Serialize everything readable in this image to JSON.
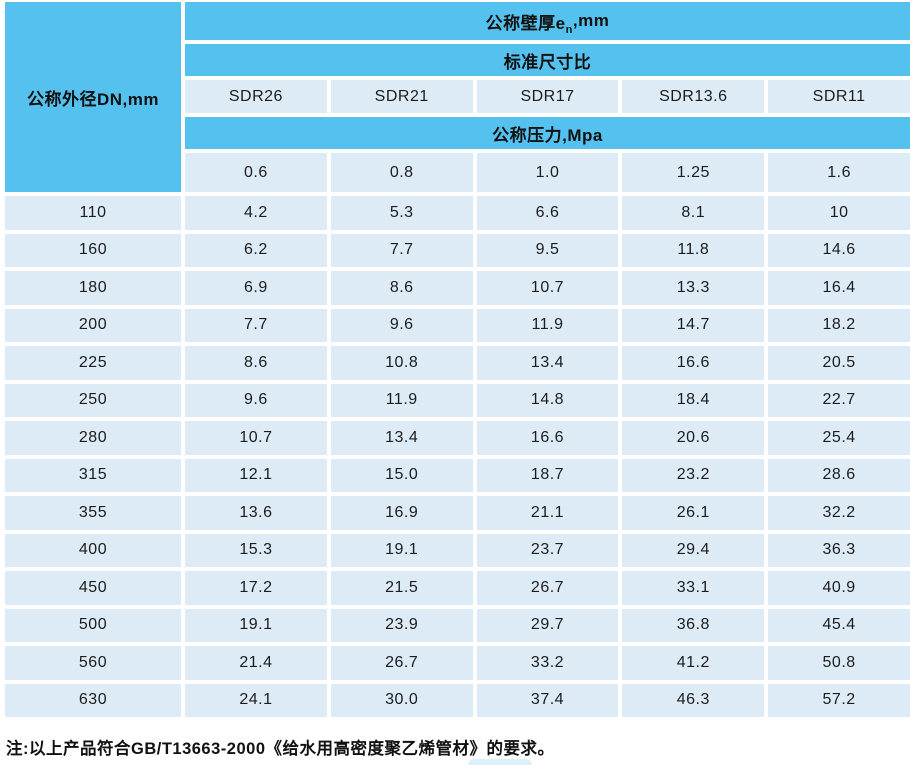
{
  "colors": {
    "header_cyan": "#55C1EE",
    "cell_light_blue": "#DDEBF7",
    "text": "#1C1C1C",
    "background": "#FFFFFF"
  },
  "table": {
    "corner_header": "公称外径DN,mm",
    "thickness_header": {
      "prefix": "公称壁厚e",
      "sub": "n",
      "suffix": ",mm"
    },
    "sdr_group_label": "标准尺寸比",
    "sdr_labels": [
      "SDR26",
      "SDR21",
      "SDR17",
      "SDR13.6",
      "SDR11"
    ],
    "pressure_group_label": "公称压力,Mpa",
    "pressure_values": [
      "0.6",
      "0.8",
      "1.0",
      "1.25",
      "1.6"
    ],
    "rows": [
      {
        "dn": "110",
        "values": [
          "4.2",
          "5.3",
          "6.6",
          "8.1",
          "10"
        ]
      },
      {
        "dn": "160",
        "values": [
          "6.2",
          "7.7",
          "9.5",
          "11.8",
          "14.6"
        ]
      },
      {
        "dn": "180",
        "values": [
          "6.9",
          "8.6",
          "10.7",
          "13.3",
          "16.4"
        ]
      },
      {
        "dn": "200",
        "values": [
          "7.7",
          "9.6",
          "11.9",
          "14.7",
          "18.2"
        ]
      },
      {
        "dn": "225",
        "values": [
          "8.6",
          "10.8",
          "13.4",
          "16.6",
          "20.5"
        ]
      },
      {
        "dn": "250",
        "values": [
          "9.6",
          "11.9",
          "14.8",
          "18.4",
          "22.7"
        ]
      },
      {
        "dn": "280",
        "values": [
          "10.7",
          "13.4",
          "16.6",
          "20.6",
          "25.4"
        ]
      },
      {
        "dn": "315",
        "values": [
          "12.1",
          "15.0",
          "18.7",
          "23.2",
          "28.6"
        ]
      },
      {
        "dn": "355",
        "values": [
          "13.6",
          "16.9",
          "21.1",
          "26.1",
          "32.2"
        ]
      },
      {
        "dn": "400",
        "values": [
          "15.3",
          "19.1",
          "23.7",
          "29.4",
          "36.3"
        ]
      },
      {
        "dn": "450",
        "values": [
          "17.2",
          "21.5",
          "26.7",
          "33.1",
          "40.9"
        ]
      },
      {
        "dn": "500",
        "values": [
          "19.1",
          "23.9",
          "29.7",
          "36.8",
          "45.4"
        ]
      },
      {
        "dn": "560",
        "values": [
          "21.4",
          "26.7",
          "33.2",
          "41.2",
          "50.8"
        ]
      },
      {
        "dn": "630",
        "values": [
          "24.1",
          "30.0",
          "37.4",
          "46.3",
          "57.2"
        ]
      }
    ]
  },
  "footer_note": "注:以上产品符合GB/T13663-2000《给水用高密度聚乙烯管材》的要求。"
}
